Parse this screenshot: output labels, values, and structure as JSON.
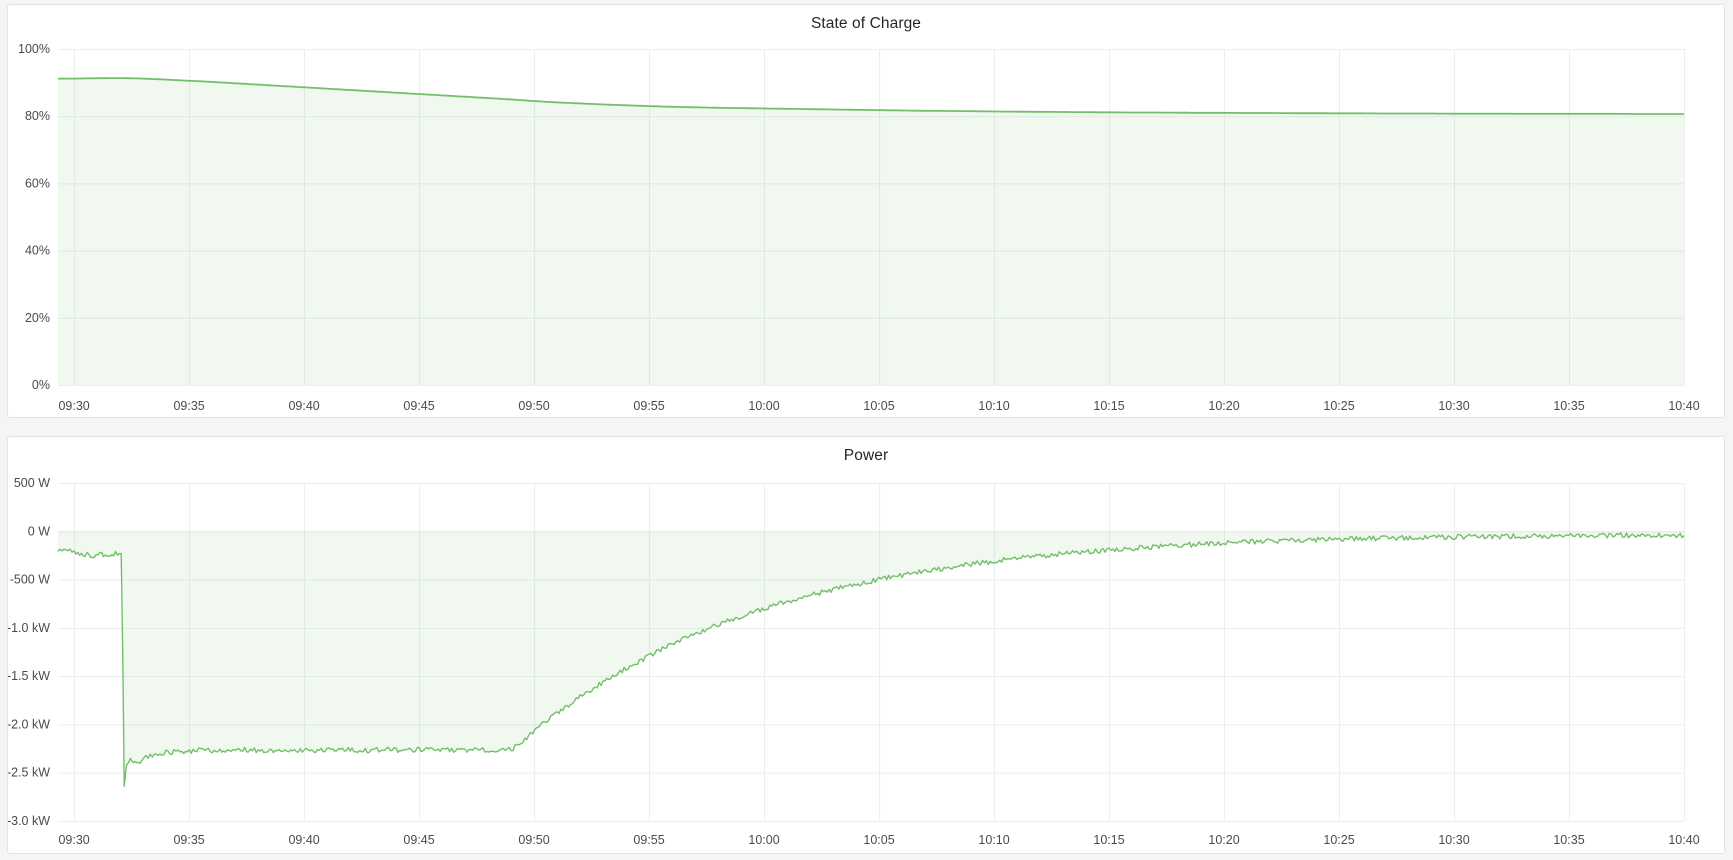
{
  "page": {
    "background": "#f4f5f6"
  },
  "panels": [
    {
      "title": "State of Charge"
    },
    {
      "title": "Power"
    }
  ],
  "colors": {
    "series_green": "#73bf69",
    "grid": "#ecedf0",
    "tick_text": "#464b52",
    "title_text": "#23272c",
    "panel_border": "#dfe4ea",
    "panel_background": "#ffffff"
  },
  "chart_data": [
    {
      "type": "area",
      "title": "State of Charge",
      "xlabel": "",
      "ylabel": "",
      "legend": "none",
      "grid": true,
      "x_tick_labels": [
        "09:30",
        "09:35",
        "09:40",
        "09:45",
        "09:50",
        "09:55",
        "10:00",
        "10:05",
        "10:10",
        "10:15",
        "10:20",
        "10:25",
        "10:30",
        "10:35",
        "10:40"
      ],
      "x_tick_minutes": [
        0,
        5,
        10,
        15,
        20,
        25,
        30,
        35,
        40,
        45,
        50,
        55,
        60,
        65,
        70
      ],
      "x_range_minutes": [
        -0.7,
        70
      ],
      "y_range": [
        0,
        100
      ],
      "y_ticks": [
        {
          "value": 100,
          "label": "100%"
        },
        {
          "value": 80,
          "label": "80%"
        },
        {
          "value": 60,
          "label": "60%"
        },
        {
          "value": 40,
          "label": "40%"
        },
        {
          "value": 20,
          "label": "20%"
        },
        {
          "value": 0,
          "label": "0%"
        }
      ],
      "series": [
        {
          "name": "State of Charge",
          "color": "#73bf69",
          "fill_opacity": 0.11,
          "line_width": 1.8,
          "noise": 0,
          "baseline": 0,
          "points": [
            [
              -0.7,
              91.2
            ],
            [
              0,
              91.2
            ],
            [
              1,
              91.3
            ],
            [
              2,
              91.35
            ],
            [
              3,
              91.2
            ],
            [
              4,
              90.9
            ],
            [
              5,
              90.55
            ],
            [
              6,
              90.2
            ],
            [
              7,
              89.8
            ],
            [
              8,
              89.4
            ],
            [
              9,
              89.0
            ],
            [
              10,
              88.6
            ],
            [
              11,
              88.2
            ],
            [
              12,
              87.8
            ],
            [
              13,
              87.4
            ],
            [
              14,
              87.0
            ],
            [
              15,
              86.6
            ],
            [
              16,
              86.2
            ],
            [
              17,
              85.8
            ],
            [
              18,
              85.4
            ],
            [
              19,
              85.0
            ],
            [
              20,
              84.5
            ],
            [
              21,
              84.1
            ],
            [
              22,
              83.8
            ],
            [
              23,
              83.5
            ],
            [
              24,
              83.25
            ],
            [
              25,
              83.0
            ],
            [
              26,
              82.8
            ],
            [
              27,
              82.65
            ],
            [
              28,
              82.5
            ],
            [
              29,
              82.4
            ],
            [
              30,
              82.3
            ],
            [
              31,
              82.2
            ],
            [
              32,
              82.1
            ],
            [
              33,
              82.0
            ],
            [
              34,
              81.9
            ],
            [
              35,
              81.8
            ],
            [
              36,
              81.7
            ],
            [
              37,
              81.6
            ],
            [
              38,
              81.55
            ],
            [
              39,
              81.5
            ],
            [
              40,
              81.4
            ],
            [
              41,
              81.35
            ],
            [
              42,
              81.3
            ],
            [
              43,
              81.25
            ],
            [
              44,
              81.2
            ],
            [
              45,
              81.15
            ],
            [
              46,
              81.1
            ],
            [
              47,
              81.1
            ],
            [
              48,
              81.05
            ],
            [
              49,
              81.0
            ],
            [
              50,
              81.0
            ],
            [
              51,
              80.95
            ],
            [
              52,
              80.95
            ],
            [
              53,
              80.9
            ],
            [
              54,
              80.9
            ],
            [
              55,
              80.85
            ],
            [
              56,
              80.85
            ],
            [
              57,
              80.8
            ],
            [
              58,
              80.8
            ],
            [
              59,
              80.8
            ],
            [
              60,
              80.75
            ],
            [
              61,
              80.75
            ],
            [
              62,
              80.75
            ],
            [
              63,
              80.7
            ],
            [
              64,
              80.7
            ],
            [
              65,
              80.7
            ],
            [
              66,
              80.7
            ],
            [
              67,
              80.7
            ],
            [
              68,
              80.65
            ],
            [
              69,
              80.65
            ],
            [
              70,
              80.65
            ]
          ]
        }
      ]
    },
    {
      "type": "area",
      "title": "Power",
      "xlabel": "",
      "ylabel": "",
      "legend": "none",
      "grid": true,
      "x_tick_labels": [
        "09:30",
        "09:35",
        "09:40",
        "09:45",
        "09:50",
        "09:55",
        "10:00",
        "10:05",
        "10:10",
        "10:15",
        "10:20",
        "10:25",
        "10:30",
        "10:35",
        "10:40"
      ],
      "x_tick_minutes": [
        0,
        5,
        10,
        15,
        20,
        25,
        30,
        35,
        40,
        45,
        50,
        55,
        60,
        65,
        70
      ],
      "x_range_minutes": [
        -0.7,
        70
      ],
      "y_range": [
        -3000,
        500
      ],
      "y_ticks": [
        {
          "value": 500,
          "label": "500 W"
        },
        {
          "value": 0,
          "label": "0 W"
        },
        {
          "value": -500,
          "label": "-500 W"
        },
        {
          "value": -1000,
          "label": "-1.0 kW"
        },
        {
          "value": -1500,
          "label": "-1.5 kW"
        },
        {
          "value": -2000,
          "label": "-2.0 kW"
        },
        {
          "value": -2500,
          "label": "-2.5 kW"
        },
        {
          "value": -3000,
          "label": "-3.0 kW"
        }
      ],
      "series": [
        {
          "name": "Power",
          "color": "#73bf69",
          "fill_opacity": 0.11,
          "line_width": 1.4,
          "noise": 26,
          "baseline": 0,
          "points": [
            [
              -0.7,
              -190
            ],
            [
              0,
              -205
            ],
            [
              0.4,
              -240
            ],
            [
              0.8,
              -252
            ],
            [
              1.2,
              -232
            ],
            [
              1.5,
              -256
            ],
            [
              1.8,
              -228
            ],
            [
              2.05,
              -252
            ],
            [
              2.12,
              -1400
            ],
            [
              2.18,
              -2650
            ],
            [
              2.28,
              -2430
            ],
            [
              2.45,
              -2340
            ],
            [
              2.65,
              -2410
            ],
            [
              2.95,
              -2370
            ],
            [
              3.4,
              -2315
            ],
            [
              3.9,
              -2295
            ],
            [
              4.6,
              -2278
            ],
            [
              5.5,
              -2268
            ],
            [
              6.5,
              -2278
            ],
            [
              7.5,
              -2262
            ],
            [
              8.5,
              -2274
            ],
            [
              9.5,
              -2260
            ],
            [
              10.5,
              -2272
            ],
            [
              11.5,
              -2258
            ],
            [
              12.5,
              -2270
            ],
            [
              13.5,
              -2256
            ],
            [
              14.5,
              -2268
            ],
            [
              15.5,
              -2258
            ],
            [
              16.5,
              -2270
            ],
            [
              17.5,
              -2260
            ],
            [
              18.4,
              -2268
            ],
            [
              19.0,
              -2262
            ],
            [
              19.6,
              -2150
            ],
            [
              20.2,
              -2030
            ],
            [
              21,
              -1880
            ],
            [
              22,
              -1715
            ],
            [
              23,
              -1560
            ],
            [
              24,
              -1420
            ],
            [
              25,
              -1290
            ],
            [
              26,
              -1172
            ],
            [
              27,
              -1065
            ],
            [
              28,
              -968
            ],
            [
              29,
              -880
            ],
            [
              30,
              -800
            ],
            [
              31,
              -728
            ],
            [
              32,
              -662
            ],
            [
              33,
              -602
            ],
            [
              34,
              -548
            ],
            [
              35,
              -498
            ],
            [
              36,
              -453
            ],
            [
              37,
              -412
            ],
            [
              38,
              -375
            ],
            [
              39,
              -341
            ],
            [
              40,
              -310
            ],
            [
              41,
              -282
            ],
            [
              42,
              -257
            ],
            [
              43,
              -234
            ],
            [
              44,
              -213
            ],
            [
              45,
              -194
            ],
            [
              46,
              -177
            ],
            [
              47,
              -161
            ],
            [
              48,
              -147
            ],
            [
              49,
              -134
            ],
            [
              50,
              -123
            ],
            [
              51,
              -113
            ],
            [
              52,
              -104
            ],
            [
              53,
              -96
            ],
            [
              54,
              -89
            ],
            [
              55,
              -83
            ],
            [
              56,
              -77
            ],
            [
              57,
              -72
            ],
            [
              58,
              -67
            ],
            [
              59,
              -63
            ],
            [
              60,
              -59
            ],
            [
              61,
              -56
            ],
            [
              62,
              -53
            ],
            [
              63,
              -50
            ],
            [
              64,
              -48
            ],
            [
              65,
              -46
            ],
            [
              66,
              -44
            ],
            [
              67,
              -42
            ],
            [
              68,
              -41
            ],
            [
              69,
              -40
            ],
            [
              70,
              -45
            ]
          ]
        }
      ]
    }
  ]
}
